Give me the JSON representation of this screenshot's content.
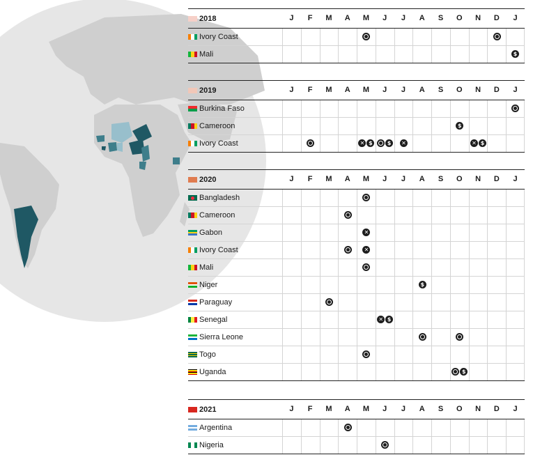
{
  "colors": {
    "globe": "#e6e6e6",
    "land": "#cfcfcf",
    "country_dark": "#1f5864",
    "country_mid": "#3e7e8b",
    "country_light": "#98bfcc",
    "dot": "#1d1d1d",
    "year_2018": "#f6d0c8",
    "year_2019": "#f1c7b8",
    "year_2020": "#e07c50",
    "year_2021": "#d8271f"
  },
  "map": {
    "highlight_dark": [
      "Nigeria",
      "Cameroon",
      "Argentina",
      "Uganda"
    ],
    "highlight_mid": [
      "Ivory Coast",
      "Ghana",
      "Gabon",
      "Niger"
    ],
    "highlight_light": [
      "Mali",
      "Burkina Faso",
      "Senegal",
      "Sierra Leone",
      "Togo"
    ]
  },
  "month_labels": [
    "J",
    "F",
    "M",
    "A",
    "M",
    "J",
    "J",
    "A",
    "S",
    "O",
    "N",
    "D",
    "J"
  ],
  "chart_data": {
    "type": "table",
    "columns": [
      "J",
      "F",
      "M",
      "A",
      "M",
      "J",
      "J",
      "A",
      "S",
      "O",
      "N",
      "D",
      "J"
    ],
    "years": [
      {
        "year": "2018",
        "color": "#f6d0c8",
        "rows": [
          {
            "country": "Ivory Coast",
            "flag": [
              "#f77f00",
              "#ffffff",
              "#009e60"
            ],
            "flag_dir": "v",
            "events": [
              {
                "month": 4,
                "icons": [
                  "ring"
                ]
              },
              {
                "month": 11,
                "icons": [
                  "ring"
                ]
              }
            ]
          },
          {
            "country": "Mali",
            "flag": [
              "#14b53a",
              "#fcd116",
              "#ce1126"
            ],
            "flag_dir": "v",
            "events": [
              {
                "month": 12,
                "icons": [
                  "$"
                ]
              }
            ]
          }
        ]
      },
      {
        "year": "2019",
        "color": "#f1c7b8",
        "rows": [
          {
            "country": "Burkina Faso",
            "flag": [
              "#ef2b2d",
              "#009e49"
            ],
            "flag_dir": "h",
            "events": [
              {
                "month": 12,
                "icons": [
                  "ring"
                ]
              }
            ]
          },
          {
            "country": "Cameroon",
            "flag": [
              "#007a5e",
              "#ce1126",
              "#fcd116"
            ],
            "flag_dir": "v",
            "events": [
              {
                "month": 9,
                "icons": [
                  "$"
                ]
              }
            ]
          },
          {
            "country": "Ivory Coast",
            "flag": [
              "#f77f00",
              "#ffffff",
              "#009e60"
            ],
            "flag_dir": "v",
            "events": [
              {
                "month": 1,
                "icons": [
                  "ring"
                ]
              },
              {
                "month": 4,
                "icons": [
                  "x",
                  "$"
                ]
              },
              {
                "month": 5,
                "icons": [
                  "ring",
                  "$"
                ]
              },
              {
                "month": 6,
                "icons": [
                  "x"
                ]
              },
              {
                "month": 10,
                "icons": [
                  "x",
                  "$"
                ]
              }
            ]
          }
        ]
      },
      {
        "year": "2020",
        "color": "#e07c50",
        "rows": [
          {
            "country": "Bangladesh",
            "flag": [
              "#006a4e",
              "#f42a41"
            ],
            "flag_dir": "c",
            "events": [
              {
                "month": 4,
                "icons": [
                  "ring"
                ]
              }
            ]
          },
          {
            "country": "Cameroon",
            "flag": [
              "#007a5e",
              "#ce1126",
              "#fcd116"
            ],
            "flag_dir": "v",
            "events": [
              {
                "month": 3,
                "icons": [
                  "ring"
                ]
              }
            ]
          },
          {
            "country": "Gabon",
            "flag": [
              "#009e60",
              "#fcd116",
              "#3a75c4"
            ],
            "flag_dir": "h",
            "events": [
              {
                "month": 4,
                "icons": [
                  "x"
                ]
              }
            ]
          },
          {
            "country": "Ivory Coast",
            "flag": [
              "#f77f00",
              "#ffffff",
              "#009e60"
            ],
            "flag_dir": "v",
            "events": [
              {
                "month": 3,
                "icons": [
                  "ring"
                ]
              },
              {
                "month": 4,
                "icons": [
                  "x"
                ]
              }
            ]
          },
          {
            "country": "Mali",
            "flag": [
              "#14b53a",
              "#fcd116",
              "#ce1126"
            ],
            "flag_dir": "v",
            "events": [
              {
                "month": 4,
                "icons": [
                  "ring"
                ]
              }
            ]
          },
          {
            "country": "Niger",
            "flag": [
              "#e05206",
              "#ffffff",
              "#0db02b"
            ],
            "flag_dir": "h",
            "events": [
              {
                "month": 7,
                "icons": [
                  "$"
                ]
              }
            ]
          },
          {
            "country": "Paraguay",
            "flag": [
              "#d52b1e",
              "#ffffff",
              "#0038a8"
            ],
            "flag_dir": "h",
            "events": [
              {
                "month": 2,
                "icons": [
                  "ring"
                ]
              }
            ]
          },
          {
            "country": "Senegal",
            "flag": [
              "#00853f",
              "#fdef42",
              "#e31b23"
            ],
            "flag_dir": "v",
            "events": [
              {
                "month": 5,
                "icons": [
                  "x",
                  "$"
                ]
              }
            ]
          },
          {
            "country": "Sierra Leone",
            "flag": [
              "#1eb53a",
              "#ffffff",
              "#0072c6"
            ],
            "flag_dir": "h",
            "events": [
              {
                "month": 7,
                "icons": [
                  "ring"
                ]
              },
              {
                "month": 9,
                "icons": [
                  "ring"
                ]
              }
            ]
          },
          {
            "country": "Togo",
            "flag": [
              "#006a4e",
              "#ffce00",
              "#006a4e",
              "#ffce00",
              "#006a4e"
            ],
            "flag_dir": "h",
            "events": [
              {
                "month": 4,
                "icons": [
                  "ring"
                ]
              }
            ]
          },
          {
            "country": "Uganda",
            "flag": [
              "#000000",
              "#fcdc04",
              "#d90000",
              "#000000",
              "#fcdc04",
              "#d90000"
            ],
            "flag_dir": "h",
            "events": [
              {
                "month": 9,
                "icons": [
                  "ring",
                  "$"
                ]
              }
            ]
          }
        ]
      },
      {
        "year": "2021",
        "color": "#d8271f",
        "rows": [
          {
            "country": "Argentina",
            "flag": [
              "#74acdf",
              "#ffffff",
              "#74acdf"
            ],
            "flag_dir": "h",
            "events": [
              {
                "month": 3,
                "icons": [
                  "ring"
                ]
              }
            ]
          },
          {
            "country": "Nigeria",
            "flag": [
              "#008751",
              "#ffffff",
              "#008751"
            ],
            "flag_dir": "v",
            "events": [
              {
                "month": 5,
                "icons": [
                  "ring"
                ]
              }
            ]
          }
        ]
      }
    ]
  }
}
